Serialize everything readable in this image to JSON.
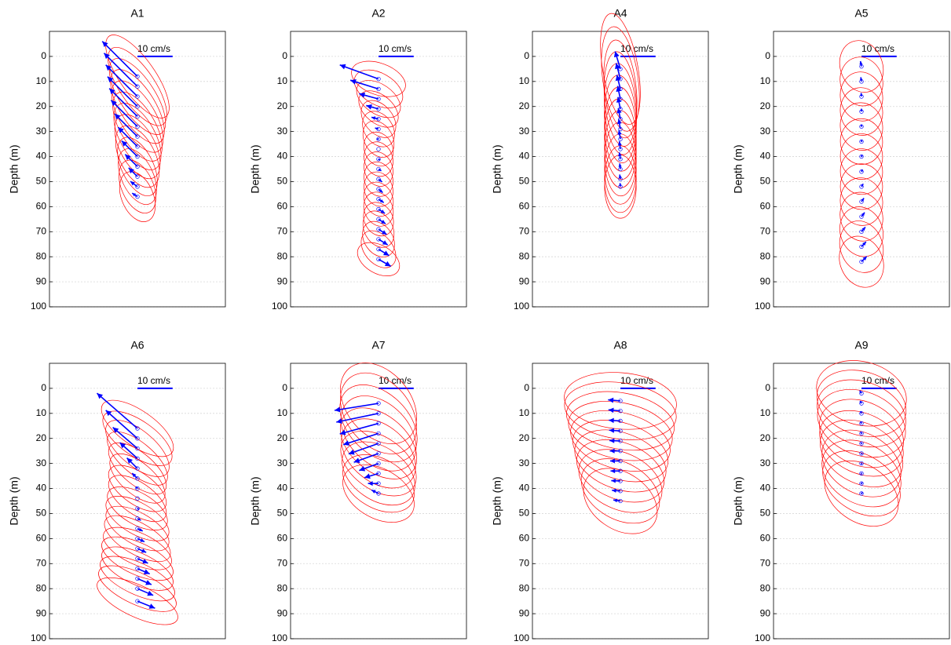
{
  "chart_data": [
    {
      "type": "tidal",
      "title": "A1",
      "ylabel": "Depth (m)",
      "scale_label": "10 cm/s",
      "scale_value": 10,
      "xlim": [
        -25,
        25
      ],
      "ylim": [
        -10,
        100
      ],
      "y_reversed": true,
      "yticks": [
        0,
        10,
        20,
        30,
        40,
        50,
        60,
        70,
        80,
        90,
        100
      ],
      "grid": true,
      "arrow_color": "#0000ff",
      "ellipse_color": "#ff0000",
      "depth": [
        8,
        12,
        16,
        20,
        24,
        28,
        32,
        36,
        40,
        44,
        48,
        52,
        56
      ],
      "u": [
        -10,
        -9.5,
        -9,
        -8.5,
        -8,
        -7.5,
        -6.5,
        -5.5,
        -4.5,
        -3.5,
        -2.5,
        -2,
        -1.5
      ],
      "v": [
        10,
        9.5,
        9,
        8.5,
        8,
        7.5,
        6.5,
        5.5,
        4.5,
        3.5,
        2.5,
        1.5,
        1
      ],
      "major": [
        14,
        13,
        12.5,
        12,
        11.5,
        11,
        10.5,
        10,
        9.5,
        9,
        8.5,
        8,
        7.5
      ],
      "minor": [
        5,
        5,
        5,
        5,
        5,
        5,
        5,
        5,
        5,
        4.5,
        4.5,
        4.5,
        4.5
      ],
      "inclination": [
        125,
        124,
        123,
        122,
        121,
        120,
        119,
        118,
        117,
        116,
        115,
        114,
        113
      ]
    },
    {
      "type": "tidal",
      "title": "A2",
      "ylabel": "Depth (m)",
      "scale_label": "10 cm/s",
      "scale_value": 10,
      "xlim": [
        -25,
        25
      ],
      "ylim": [
        -10,
        100
      ],
      "y_reversed": true,
      "yticks": [
        0,
        10,
        20,
        30,
        40,
        50,
        60,
        70,
        80,
        90,
        100
      ],
      "grid": true,
      "arrow_color": "#0000ff",
      "ellipse_color": "#ff0000",
      "depth": [
        9,
        13,
        17,
        21,
        25,
        29,
        33,
        37,
        41,
        45,
        49,
        53,
        57,
        61,
        65,
        69,
        73,
        77,
        81
      ],
      "u": [
        -11,
        -8,
        -5.5,
        -3.5,
        -2,
        -1,
        -0.5,
        0,
        0.5,
        0.8,
        1,
        1.2,
        1.5,
        1.8,
        2,
        2.3,
        2.6,
        3,
        3.5
      ],
      "v": [
        4,
        2.5,
        1.5,
        1,
        0.5,
        0.3,
        0,
        0,
        -0.3,
        -0.5,
        -0.8,
        -1,
        -1,
        -1.2,
        -1.3,
        -1.5,
        -1.6,
        -1.8,
        -2
      ],
      "major": [
        8,
        7.5,
        7,
        6.5,
        6,
        5.5,
        5.5,
        5,
        5,
        5,
        5,
        5,
        5,
        5,
        5,
        5.5,
        5.5,
        6,
        6.5
      ],
      "minor": [
        4.5,
        4.5,
        4.2,
        4,
        4,
        4,
        4,
        4,
        4,
        4,
        4,
        4,
        4,
        4,
        4,
        4,
        4,
        4,
        4
      ],
      "inclination": [
        160,
        150,
        145,
        140,
        130,
        125,
        120,
        115,
        110,
        110,
        110,
        110,
        115,
        115,
        120,
        120,
        125,
        130,
        150
      ]
    },
    {
      "type": "tidal",
      "title": "A4",
      "ylabel": "Depth (m)",
      "scale_label": "10 cm/s",
      "scale_value": 10,
      "xlim": [
        -25,
        25
      ],
      "ylim": [
        -10,
        100
      ],
      "y_reversed": true,
      "yticks": [
        0,
        10,
        20,
        30,
        40,
        50,
        60,
        70,
        80,
        90,
        100
      ],
      "grid": true,
      "arrow_color": "#0000ff",
      "ellipse_color": "#ff0000",
      "depth": [
        5,
        9,
        13,
        17,
        21,
        25,
        29,
        33,
        37,
        41,
        45,
        49,
        52
      ],
      "u": [
        -1.5,
        -1.2,
        -1,
        -0.8,
        -0.7,
        -0.6,
        -0.5,
        -0.4,
        -0.3,
        -0.3,
        -0.2,
        -0.2,
        -0.1
      ],
      "v": [
        5,
        4.5,
        4,
        3.7,
        3.4,
        3.1,
        2.8,
        2.5,
        2.2,
        1.9,
        1.6,
        1.3,
        1
      ],
      "major": [
        16,
        15,
        14,
        13.5,
        13,
        12.5,
        12,
        11.5,
        11,
        10.5,
        10,
        9.5,
        9
      ],
      "minor": [
        5,
        5,
        4.5,
        4.5,
        4.5,
        4.5,
        4.5,
        4.5,
        4.5,
        4.5,
        4.5,
        4.5,
        4.5
      ],
      "inclination": [
        100,
        98,
        96,
        95,
        94,
        93,
        92,
        92,
        91,
        91,
        90,
        90,
        90
      ]
    },
    {
      "type": "tidal",
      "title": "A5",
      "ylabel": "Depth (m)",
      "scale_label": "10 cm/s",
      "scale_value": 10,
      "xlim": [
        -25,
        25
      ],
      "ylim": [
        -10,
        100
      ],
      "y_reversed": true,
      "yticks": [
        0,
        10,
        20,
        30,
        40,
        50,
        60,
        70,
        80,
        90,
        100
      ],
      "grid": true,
      "arrow_color": "#0000ff",
      "ellipse_color": "#ff0000",
      "depth": [
        4,
        10,
        16,
        22,
        28,
        34,
        40,
        46,
        52,
        58,
        64,
        70,
        76,
        82
      ],
      "u": [
        -0.3,
        -0.2,
        -0.1,
        0,
        0,
        0.1,
        0.2,
        0.3,
        0.5,
        0.7,
        0.9,
        1.1,
        1.3,
        1.5
      ],
      "v": [
        1.5,
        1.2,
        1,
        0.8,
        0.6,
        0.5,
        0.5,
        0.6,
        0.8,
        1,
        1.2,
        1.3,
        1.4,
        1.5
      ],
      "major": [
        7.5,
        7,
        7,
        6.8,
        6.8,
        6.5,
        6.5,
        6.5,
        6.5,
        6.8,
        7,
        7.2,
        7.5,
        7.5
      ],
      "minor": [
        6,
        6,
        6,
        6,
        6,
        6,
        6,
        6,
        6,
        6,
        6,
        6,
        6,
        6
      ],
      "inclination": [
        110,
        105,
        100,
        100,
        100,
        95,
        95,
        95,
        95,
        100,
        105,
        110,
        110,
        115
      ]
    },
    {
      "type": "tidal",
      "title": "A6",
      "ylabel": "Depth (m)",
      "scale_label": "10 cm/s",
      "scale_value": 10,
      "xlim": [
        -25,
        25
      ],
      "ylim": [
        -10,
        100
      ],
      "y_reversed": true,
      "yticks": [
        0,
        10,
        20,
        30,
        40,
        50,
        60,
        70,
        80,
        90,
        100
      ],
      "grid": true,
      "arrow_color": "#0000ff",
      "ellipse_color": "#ff0000",
      "depth": [
        16,
        20,
        24,
        28,
        32,
        36,
        40,
        44,
        48,
        52,
        56,
        60,
        64,
        68,
        72,
        76,
        80,
        85
      ],
      "u": [
        -11.5,
        -9,
        -7,
        -5,
        -3,
        -1.5,
        -0.5,
        0,
        0.5,
        1,
        1.5,
        2,
        2.5,
        3,
        3.5,
        4,
        4.5,
        5
      ],
      "v": [
        10,
        8,
        6,
        4.5,
        3,
        1.5,
        0.5,
        0,
        -0.3,
        -0.5,
        -0.7,
        -0.9,
        -1.1,
        -1.3,
        -1.5,
        -1.7,
        -1.9,
        -2
      ],
      "major": [
        12,
        11.5,
        11,
        10.5,
        10,
        9.5,
        9.5,
        9.5,
        9.5,
        10,
        10,
        10.5,
        10.5,
        11,
        11,
        11.5,
        12,
        12.5
      ],
      "minor": [
        5,
        5,
        5,
        4.5,
        4.5,
        4.5,
        4.5,
        4.5,
        4.5,
        4.5,
        4.5,
        4.5,
        4.5,
        4.5,
        4.5,
        4.5,
        4.5,
        4.5
      ],
      "inclination": [
        145,
        145,
        140,
        140,
        140,
        140,
        145,
        145,
        150,
        150,
        150,
        150,
        155,
        155,
        155,
        155,
        155,
        155
      ]
    },
    {
      "type": "tidal",
      "title": "A7",
      "ylabel": "Depth (m)",
      "scale_label": "10 cm/s",
      "scale_value": 10,
      "xlim": [
        -25,
        25
      ],
      "ylim": [
        -10,
        100
      ],
      "y_reversed": true,
      "yticks": [
        0,
        10,
        20,
        30,
        40,
        50,
        60,
        70,
        80,
        90,
        100
      ],
      "grid": true,
      "arrow_color": "#0000ff",
      "ellipse_color": "#ff0000",
      "depth": [
        6,
        10,
        14,
        18,
        22,
        26,
        30,
        34,
        38,
        42
      ],
      "u": [
        -12.5,
        -12,
        -11,
        -10,
        -8.5,
        -7,
        -5.5,
        -4,
        -3,
        -2
      ],
      "v": [
        -2,
        -2.5,
        -3,
        -3.2,
        -3,
        -2.5,
        -2,
        -1.2,
        0,
        1
      ],
      "major": [
        13,
        13,
        13,
        12.5,
        12.5,
        12,
        12,
        11.5,
        11,
        11
      ],
      "minor": [
        9,
        9,
        8.5,
        8.5,
        8,
        8,
        7.5,
        7.5,
        7,
        7
      ],
      "inclination": [
        130,
        130,
        135,
        135,
        140,
        140,
        145,
        145,
        150,
        150
      ]
    },
    {
      "type": "tidal",
      "title": "A8",
      "ylabel": "Depth (m)",
      "scale_label": "10 cm/s",
      "scale_value": 10,
      "xlim": [
        -25,
        25
      ],
      "ylim": [
        -10,
        100
      ],
      "y_reversed": true,
      "yticks": [
        0,
        10,
        20,
        30,
        40,
        50,
        60,
        70,
        80,
        90,
        100
      ],
      "grid": true,
      "arrow_color": "#0000ff",
      "ellipse_color": "#ff0000",
      "depth": [
        5,
        9,
        13,
        17,
        21,
        25,
        29,
        33,
        37,
        41,
        45
      ],
      "u": [
        -3.5,
        -3.4,
        -3.3,
        -3.2,
        -3.1,
        -3,
        -2.9,
        -2.8,
        -2.6,
        -2.4,
        -2
      ],
      "v": [
        0.3,
        0.3,
        0.2,
        0.2,
        0.1,
        0,
        0,
        0,
        0.1,
        0.2,
        0.3
      ],
      "major": [
        16,
        16,
        15.5,
        15,
        14.5,
        14,
        13.5,
        13,
        12.5,
        12,
        11.5
      ],
      "minor": [
        8,
        8,
        8,
        8,
        8,
        8,
        8,
        8,
        8,
        8,
        8
      ],
      "inclination": [
        175,
        172,
        170,
        168,
        165,
        162,
        160,
        158,
        155,
        150,
        145
      ]
    },
    {
      "type": "tidal",
      "title": "A9",
      "ylabel": "Depth (m)",
      "scale_label": "10 cm/s",
      "scale_value": 10,
      "xlim": [
        -25,
        25
      ],
      "ylim": [
        -10,
        100
      ],
      "y_reversed": true,
      "yticks": [
        0,
        10,
        20,
        30,
        40,
        50,
        60,
        70,
        80,
        90,
        100
      ],
      "grid": true,
      "arrow_color": "#0000ff",
      "ellipse_color": "#ff0000",
      "depth": [
        2,
        6,
        10,
        14,
        18,
        22,
        26,
        30,
        34,
        38,
        42
      ],
      "u": [
        -0.5,
        -0.4,
        -0.3,
        -0.3,
        -0.2,
        -0.2,
        -0.1,
        0,
        0.1,
        0.2,
        0.3
      ],
      "v": [
        0.8,
        0.7,
        0.6,
        0.5,
        0.4,
        0.3,
        0.2,
        0.2,
        0.2,
        0.3,
        0.3
      ],
      "major": [
        13,
        13,
        13,
        13,
        12.5,
        12.5,
        12.5,
        12,
        12,
        12,
        11.5
      ],
      "minor": [
        9,
        9,
        9,
        9,
        9,
        8.5,
        8.5,
        8.5,
        8.5,
        8,
        8
      ],
      "inclination": [
        165,
        162,
        160,
        158,
        155,
        155,
        152,
        150,
        150,
        148,
        145
      ]
    }
  ]
}
